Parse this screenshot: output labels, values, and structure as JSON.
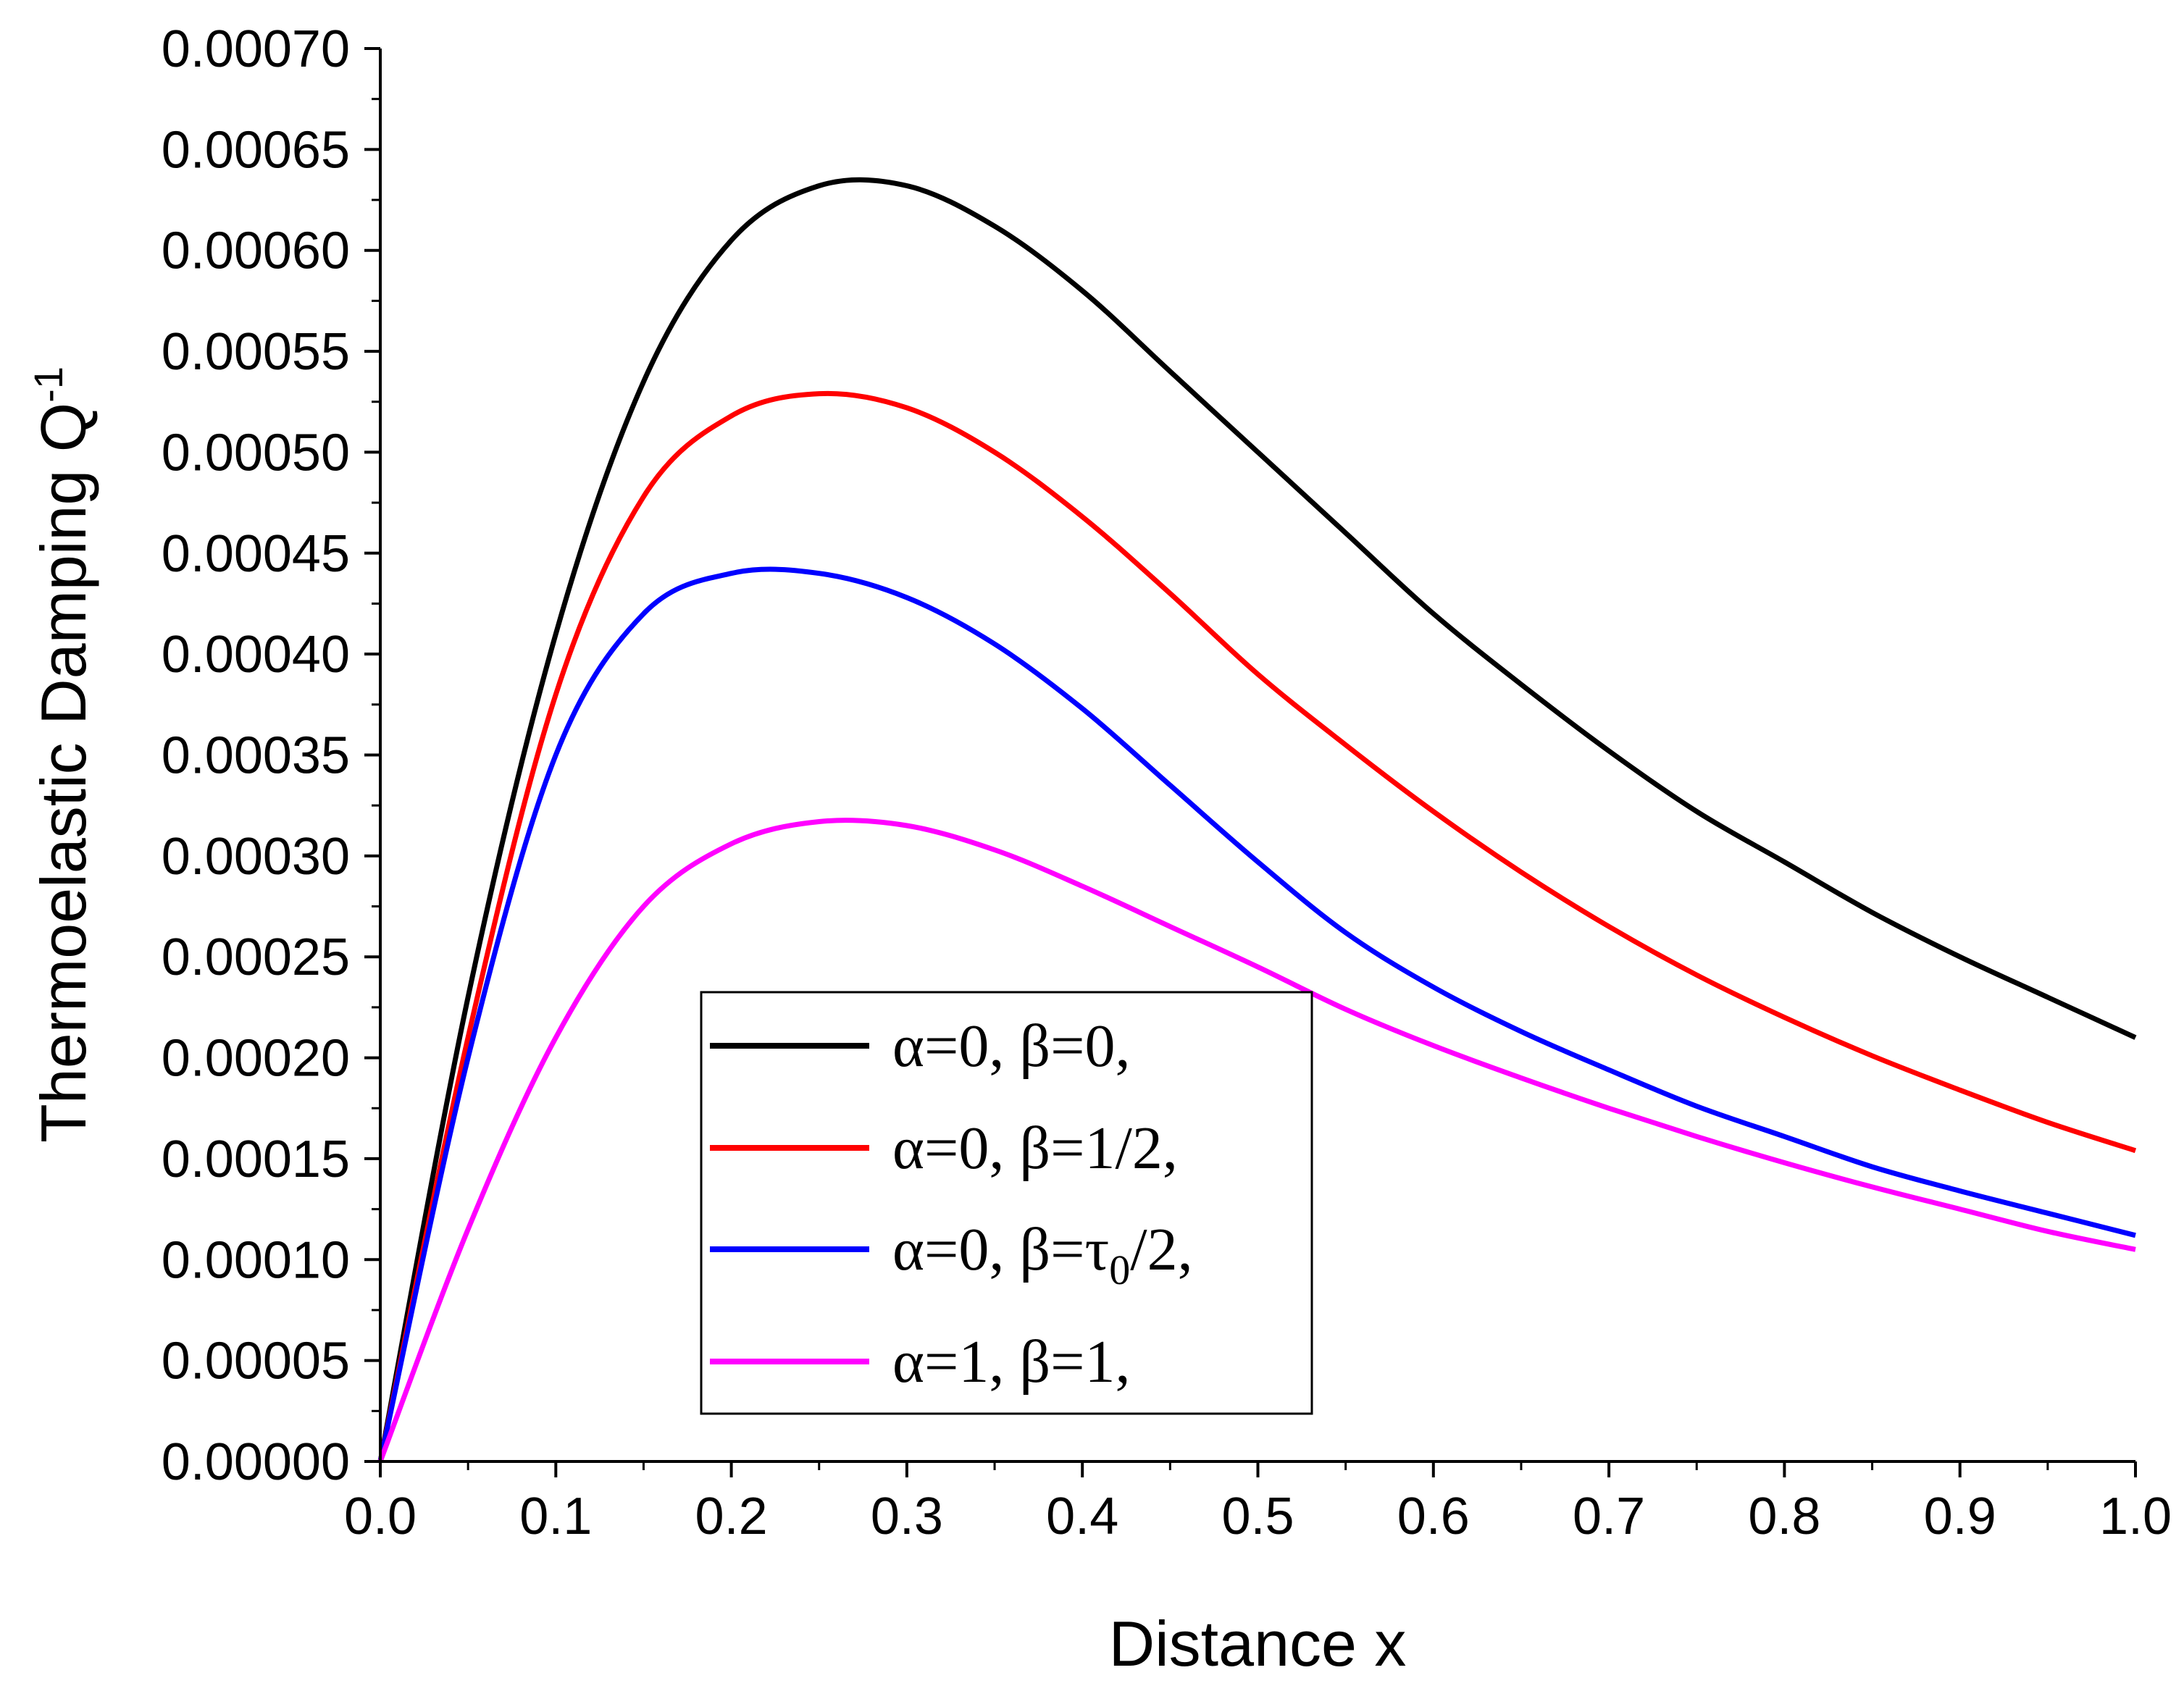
{
  "chart_data": {
    "type": "line",
    "title": "",
    "xlabel": "Distance x",
    "ylabel": {
      "main": "Thermoelastic Damping Q",
      "superscript": "-1"
    },
    "xlim": [
      0.0,
      1.0
    ],
    "ylim": [
      0.0,
      0.0007
    ],
    "xticks": [
      "0.0",
      "0.1",
      "0.2",
      "0.3",
      "0.4",
      "0.5",
      "0.6",
      "0.7",
      "0.8",
      "0.9",
      "1.0"
    ],
    "yticks": [
      "0.00000",
      "0.00005",
      "0.00010",
      "0.00015",
      "0.00020",
      "0.00025",
      "0.00030",
      "0.00035",
      "0.00040",
      "0.00045",
      "0.00050",
      "0.00055",
      "0.00060",
      "0.00065",
      "0.00070"
    ],
    "grid": false,
    "legend_position": "lower-center",
    "x": [
      0.0,
      0.05,
      0.1,
      0.15,
      0.2,
      0.25,
      0.3,
      0.35,
      0.4,
      0.45,
      0.5,
      0.55,
      0.6,
      0.65,
      0.7,
      0.75,
      0.8,
      0.85,
      0.9,
      0.95,
      1.0
    ],
    "series": [
      {
        "name": "α=0, β=0,",
        "legend": {
          "a": "α",
          "a_val": "=0, ",
          "b": "β",
          "b_val": "=0,",
          "sub": "",
          "tail": ""
        },
        "color": "#000000",
        "values": [
          0.0,
          0.00023,
          0.00041,
          0.000535,
          0.000605,
          0.000632,
          0.000632,
          0.000612,
          0.00058,
          0.00054,
          0.0005,
          0.00046,
          0.00042,
          0.000385,
          0.000352,
          0.000322,
          0.000297,
          0.000272,
          0.00025,
          0.00023,
          0.00021
        ]
      },
      {
        "name": "α=0, β=1/2,",
        "legend": {
          "a": "α",
          "a_val": "=0, ",
          "b": "β",
          "b_val": "=1/2,",
          "sub": "",
          "tail": ""
        },
        "color": "#ff0000",
        "values": [
          0.0,
          0.00021,
          0.00038,
          0.000478,
          0.000518,
          0.000529,
          0.000522,
          0.0005,
          0.000468,
          0.00043,
          0.00039,
          0.000355,
          0.000322,
          0.000292,
          0.000265,
          0.000241,
          0.00022,
          0.000201,
          0.000184,
          0.000168,
          0.000154
        ]
      },
      {
        "name": "α=0, β=τ0/2,",
        "legend": {
          "a": "α",
          "a_val": "=0, ",
          "b": "β",
          "b_val": "=τ",
          "sub": "0",
          "tail": "/2,"
        },
        "color": "#0000ff",
        "values": [
          0.0,
          0.0002,
          0.00035,
          0.00042,
          0.00044,
          0.00044,
          0.000428,
          0.000405,
          0.000373,
          0.000335,
          0.000297,
          0.000262,
          0.000235,
          0.000213,
          0.000194,
          0.000176,
          0.000161,
          0.000146,
          0.000134,
          0.000123,
          0.000112
        ]
      },
      {
        "name": "α=1, β=1,",
        "legend": {
          "a": "α",
          "a_val": "=1, ",
          "b": "β",
          "b_val": "=1,",
          "sub": "",
          "tail": ""
        },
        "color": "#ff00ff",
        "values": [
          0.0,
          0.000115,
          0.00021,
          0.000275,
          0.000306,
          0.000317,
          0.000315,
          0.000303,
          0.000285,
          0.000265,
          0.000245,
          0.000224,
          0.000206,
          0.00019,
          0.000175,
          0.000161,
          0.000148,
          0.000136,
          0.000125,
          0.000114,
          0.000105
        ]
      }
    ]
  }
}
